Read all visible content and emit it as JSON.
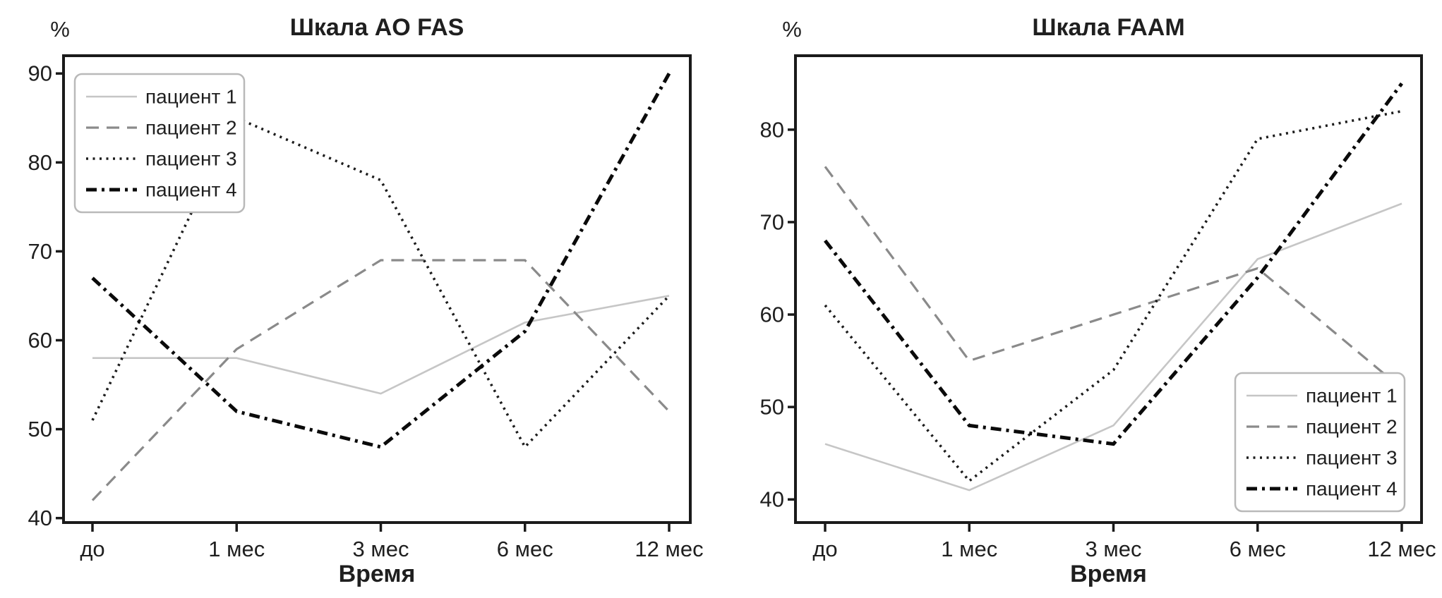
{
  "figure": {
    "background": "#ffffff",
    "axis_color": "#1a1a1a",
    "text_color": "#1f1f1f",
    "legend_border_color": "#b9b9b9",
    "legend_fill": "#ffffff"
  },
  "chart_data": [
    {
      "type": "line",
      "title": "Шкала AO FAS",
      "ylabel": "%",
      "xlabel": "Время",
      "categories": [
        "до",
        "1 мес",
        "3 мес",
        "6 мес",
        "12 мес"
      ],
      "yticks": [
        40,
        50,
        60,
        70,
        80,
        90
      ],
      "ylim": [
        39.5,
        92
      ],
      "grid": false,
      "legend_position": "top-left",
      "series": [
        {
          "name": "пациент 1",
          "style": "solid",
          "color": "#c6c6c6",
          "width": 2.6,
          "values": [
            58,
            58,
            54,
            62,
            65
          ]
        },
        {
          "name": "пациент 2",
          "style": "dashed",
          "color": "#8a8a8a",
          "width": 3.2,
          "values": [
            42,
            59,
            69,
            69,
            52
          ]
        },
        {
          "name": "пациент 3",
          "style": "dotted",
          "color": "#1c1c1c",
          "width": 3.6,
          "values": [
            51,
            85,
            78,
            48,
            65
          ]
        },
        {
          "name": "пациент 4",
          "style": "dashdot",
          "color": "#0a0a0a",
          "width": 5.0,
          "values": [
            67,
            52,
            48,
            61,
            90
          ]
        }
      ]
    },
    {
      "type": "line",
      "title": "Шкала FAAM",
      "ylabel": "%",
      "xlabel": "Время",
      "categories": [
        "до",
        "1 мес",
        "3 мес",
        "6 мес",
        "12 мес"
      ],
      "yticks": [
        40,
        50,
        60,
        70,
        80
      ],
      "ylim": [
        37.5,
        88
      ],
      "grid": false,
      "legend_position": "bottom-right",
      "series": [
        {
          "name": "пациент 1",
          "style": "solid",
          "color": "#c6c6c6",
          "width": 2.6,
          "values": [
            46,
            41,
            48,
            66,
            72
          ]
        },
        {
          "name": "пациент 2",
          "style": "dashed",
          "color": "#8a8a8a",
          "width": 3.2,
          "values": [
            76,
            55,
            60,
            65,
            52
          ]
        },
        {
          "name": "пациент 3",
          "style": "dotted",
          "color": "#1c1c1c",
          "width": 3.6,
          "values": [
            61,
            42,
            54,
            79,
            82
          ]
        },
        {
          "name": "пациент 4",
          "style": "dashdot",
          "color": "#0a0a0a",
          "width": 5.0,
          "values": [
            68,
            48,
            46,
            64,
            85
          ]
        }
      ]
    }
  ]
}
